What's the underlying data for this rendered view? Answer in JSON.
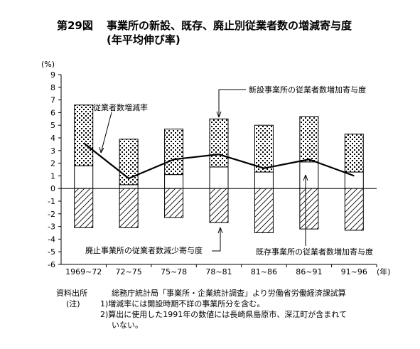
{
  "figure": {
    "number": "第29図",
    "title": "事業所の新設、既存、廃止別従業者数の増減寄与度",
    "subtitle": "(年平均伸び率)"
  },
  "chart_data": {
    "type": "bar",
    "ylabel": "(%)",
    "xunit": "(年)",
    "ylim": [
      -6,
      9
    ],
    "yticks": [
      -6,
      -5,
      -4,
      -3,
      -2,
      -1,
      0,
      1,
      2,
      3,
      4,
      5,
      6,
      7,
      8,
      9
    ],
    "grid": false,
    "categories": [
      "1969~72",
      "72~75",
      "75~78",
      "78~81",
      "81~86",
      "86~91",
      "91~96"
    ],
    "series": [
      {
        "name": "既存事業所の従業者数増加寄与度",
        "type": "bar",
        "values": [
          1.8,
          0.3,
          1.1,
          1.7,
          1.3,
          2.1,
          1.3
        ]
      },
      {
        "name": "新設事業所の従業者数増加寄与度",
        "type": "bar",
        "values": [
          4.8,
          3.6,
          3.6,
          3.8,
          3.7,
          3.6,
          3.0
        ]
      },
      {
        "name": "廃止事業所の従業者数減少寄与度",
        "type": "bar",
        "values": [
          -3.1,
          -3.1,
          -2.3,
          -2.7,
          -3.5,
          -3.2,
          -3.3
        ]
      },
      {
        "name": "従業者数増減率",
        "type": "line",
        "values": [
          3.6,
          0.8,
          2.3,
          2.7,
          1.6,
          2.3,
          1.0
        ]
      }
    ],
    "annotations": [
      {
        "text": "従業者数増減率",
        "target": "従業者数増減率"
      },
      {
        "text": "新設事業所の従業者数増加寄与度",
        "target": "新設事業所の従業者数増加寄与度"
      },
      {
        "text": "廃止事業所の従業者数減少寄与度",
        "target": "廃止事業所の従業者数減少寄与度"
      },
      {
        "text": "既存事業所の従業者数増加寄与度",
        "target": "既存事業所の従業者数増加寄与度"
      }
    ]
  },
  "notes": {
    "source_label": "資料出所",
    "source_text": "総務庁統計局「事業所・企業統計調査」より労働省労働経済課試算",
    "note_label": "(注)",
    "note1": "1)増減率には開設時期不詳の事業所分を含む。",
    "note2": "2)算出に使用した1991年の数値には長崎県島原市、深江町が含まれて",
    "note2_cont": "いない。"
  },
  "colors": {
    "ink": "#000000",
    "paper": "#ffffff"
  }
}
